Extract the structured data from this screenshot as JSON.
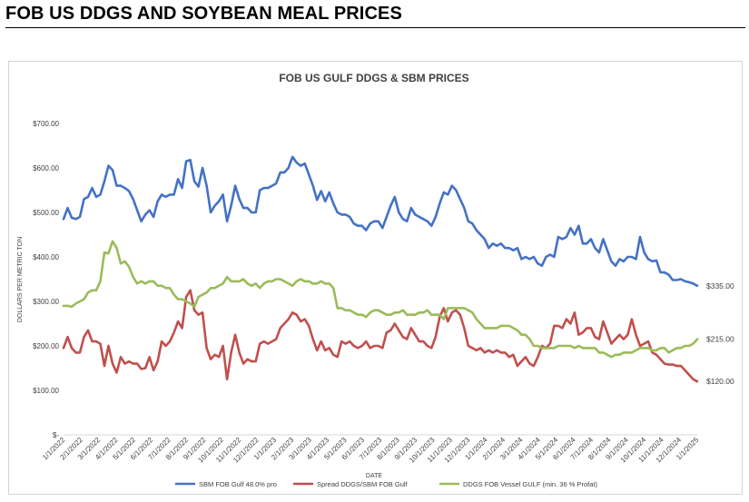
{
  "page": {
    "title": "FOB US DDGS AND SOYBEAN MEAL PRICES"
  },
  "chart_data": {
    "type": "line",
    "title": "FOB US GULF DDGS & SBM PRICES",
    "xlabel": "DATE",
    "ylabel": "DOLLARS PER METRIC TON",
    "ylim": [
      0,
      700
    ],
    "yticks": [
      {
        "value": 0,
        "label": "$-"
      },
      {
        "value": 100,
        "label": "$100.00"
      },
      {
        "value": 200,
        "label": "$200.00"
      },
      {
        "value": 300,
        "label": "$300.00"
      },
      {
        "value": 400,
        "label": "$400.00"
      },
      {
        "value": 500,
        "label": "$500.00"
      },
      {
        "value": 600,
        "label": "$600.00"
      },
      {
        "value": 700,
        "label": "$700.00"
      }
    ],
    "x_start": "1/1/2022",
    "x_end": "2/1/2025",
    "xticks": [
      "1/1/2022",
      "2/1/2022",
      "3/1/2022",
      "4/1/2022",
      "5/1/2022",
      "6/1/2022",
      "7/1/2022",
      "8/1/2022",
      "9/1/2022",
      "10/1/2022",
      "11/1/2022",
      "12/1/2022",
      "1/1/2023",
      "2/1/2023",
      "3/1/2023",
      "4/1/2023",
      "5/1/2023",
      "6/1/2023",
      "7/1/2023",
      "8/1/2023",
      "9/1/2023",
      "10/1/2023",
      "11/1/2023",
      "12/1/2023",
      "1/1/2024",
      "2/1/2024",
      "3/1/2024",
      "4/1/2024",
      "5/1/2024",
      "6/1/2024",
      "7/1/2024",
      "8/1/2024",
      "9/1/2024",
      "10/1/2024",
      "11/1/2024",
      "12/1/2024",
      "1/1/2025"
    ],
    "grid": false,
    "legend_position": "bottom",
    "series": [
      {
        "name": "SBM FOB Gulf 48.0% pro",
        "color": "#4472c4",
        "end_label": "$335.00",
        "values": [
          485,
          510,
          488,
          485,
          490,
          530,
          535,
          555,
          535,
          540,
          570,
          605,
          595,
          560,
          560,
          555,
          548,
          530,
          505,
          480,
          495,
          505,
          490,
          525,
          540,
          535,
          540,
          540,
          575,
          555,
          615,
          618,
          570,
          558,
          600,
          560,
          500,
          515,
          525,
          540,
          480,
          515,
          560,
          530,
          510,
          510,
          500,
          500,
          550,
          555,
          555,
          560,
          565,
          590,
          590,
          600,
          625,
          612,
          605,
          610,
          585,
          560,
          528,
          548,
          525,
          545,
          520,
          500,
          495,
          495,
          490,
          475,
          470,
          470,
          460,
          475,
          480,
          480,
          465,
          490,
          515,
          535,
          500,
          485,
          480,
          510,
          495,
          490,
          485,
          480,
          470,
          490,
          520,
          545,
          540,
          560,
          550,
          530,
          510,
          480,
          475,
          460,
          450,
          440,
          420,
          430,
          425,
          430,
          420,
          420,
          415,
          420,
          395,
          400,
          395,
          400,
          385,
          380,
          400,
          405,
          400,
          445,
          440,
          445,
          465,
          450,
          470,
          430,
          430,
          440,
          420,
          410,
          440,
          415,
          390,
          380,
          395,
          390,
          400,
          400,
          395,
          445,
          410,
          395,
          390,
          392,
          365,
          365,
          360,
          348,
          348,
          350,
          345,
          343,
          340,
          335
        ]
      },
      {
        "name": "Spread DDGS/SBM FOB Gulf",
        "color": "#c0504d",
        "end_label": "$120.00",
        "values": [
          195,
          220,
          195,
          185,
          185,
          220,
          235,
          210,
          210,
          205,
          155,
          200,
          160,
          140,
          175,
          160,
          165,
          160,
          160,
          148,
          150,
          175,
          145,
          165,
          210,
          200,
          210,
          230,
          255,
          240,
          310,
          325,
          280,
          270,
          275,
          195,
          170,
          180,
          175,
          200,
          125,
          185,
          225,
          185,
          160,
          170,
          165,
          165,
          205,
          210,
          205,
          210,
          215,
          240,
          250,
          260,
          275,
          270,
          255,
          260,
          245,
          215,
          190,
          210,
          190,
          195,
          180,
          175,
          210,
          205,
          210,
          200,
          195,
          200,
          210,
          195,
          200,
          200,
          195,
          230,
          235,
          250,
          235,
          220,
          215,
          240,
          225,
          210,
          210,
          200,
          195,
          220,
          265,
          285,
          255,
          275,
          280,
          270,
          240,
          200,
          195,
          190,
          195,
          185,
          190,
          185,
          190,
          185,
          185,
          175,
          180,
          155,
          165,
          175,
          160,
          155,
          175,
          200,
          195,
          205,
          245,
          245,
          240,
          260,
          250,
          275,
          225,
          230,
          240,
          240,
          220,
          215,
          255,
          230,
          205,
          215,
          225,
          215,
          225,
          260,
          225,
          200,
          205,
          210,
          185,
          180,
          170,
          160,
          158,
          158,
          155,
          155,
          145,
          135,
          125,
          120
        ]
      },
      {
        "name": "DDGS FOB Vessel GULF  (min. 36 % Profat)",
        "color": "#9bbb59",
        "end_label": "$215.00",
        "values": [
          290,
          290,
          288,
          295,
          300,
          305,
          320,
          325,
          325,
          345,
          410,
          408,
          435,
          420,
          385,
          390,
          378,
          355,
          340,
          345,
          340,
          345,
          345,
          335,
          335,
          330,
          330,
          315,
          305,
          305,
          300,
          295,
          288,
          310,
          315,
          320,
          330,
          330,
          335,
          340,
          355,
          345,
          345,
          345,
          350,
          340,
          335,
          340,
          330,
          340,
          345,
          345,
          350,
          350,
          345,
          340,
          335,
          345,
          350,
          345,
          345,
          340,
          340,
          345,
          340,
          340,
          330,
          285,
          285,
          280,
          280,
          275,
          270,
          270,
          265,
          275,
          280,
          280,
          275,
          270,
          270,
          275,
          275,
          280,
          270,
          270,
          270,
          275,
          275,
          280,
          270,
          270,
          270,
          260,
          285,
          285,
          285,
          285,
          285,
          280,
          275,
          260,
          250,
          240,
          240,
          240,
          240,
          245,
          245,
          245,
          240,
          235,
          225,
          225,
          215,
          200,
          200,
          195,
          195,
          195,
          195,
          200,
          200,
          200,
          200,
          195,
          200,
          195,
          195,
          195,
          195,
          185,
          185,
          180,
          175,
          180,
          180,
          185,
          185,
          185,
          190,
          195,
          195,
          195,
          190,
          190,
          195,
          195,
          185,
          190,
          195,
          195,
          200,
          200,
          205,
          215
        ]
      }
    ]
  }
}
